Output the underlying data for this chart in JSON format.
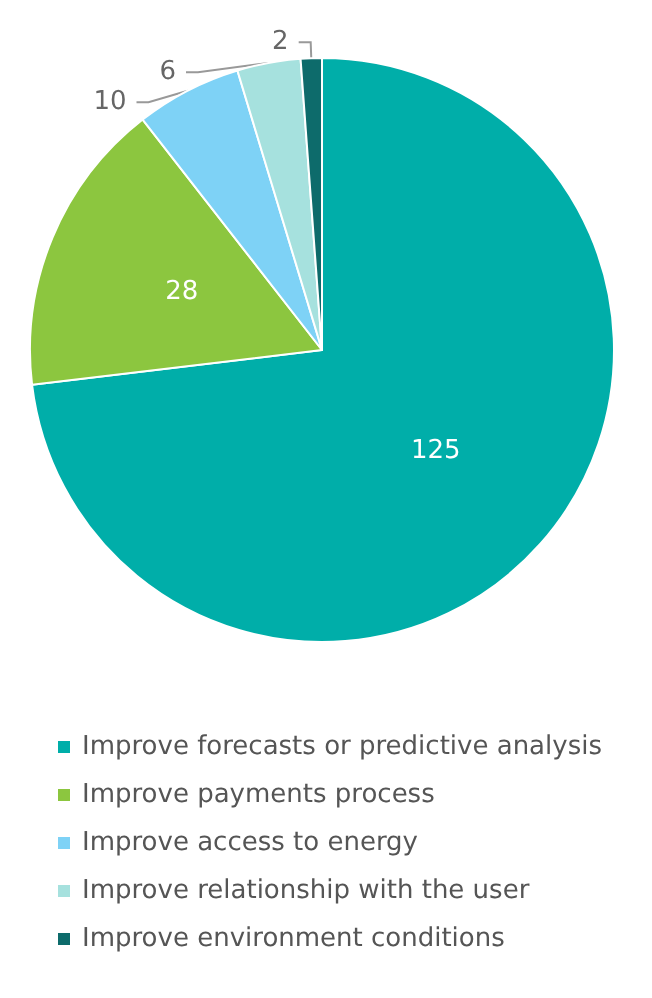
{
  "chart_data": {
    "type": "pie",
    "categories": [
      "Improve forecasts or predictive analysis",
      "Improve payments process",
      "Improve access to energy",
      "Improve relationship with the user",
      "Improve environment conditions"
    ],
    "values": [
      125,
      28,
      10,
      6,
      2
    ],
    "colors": [
      "#00aea9",
      "#8cc63f",
      "#7ed2f6",
      "#a6e1de",
      "#0d6b6b"
    ],
    "data_labels": true,
    "legend": "bottom"
  }
}
